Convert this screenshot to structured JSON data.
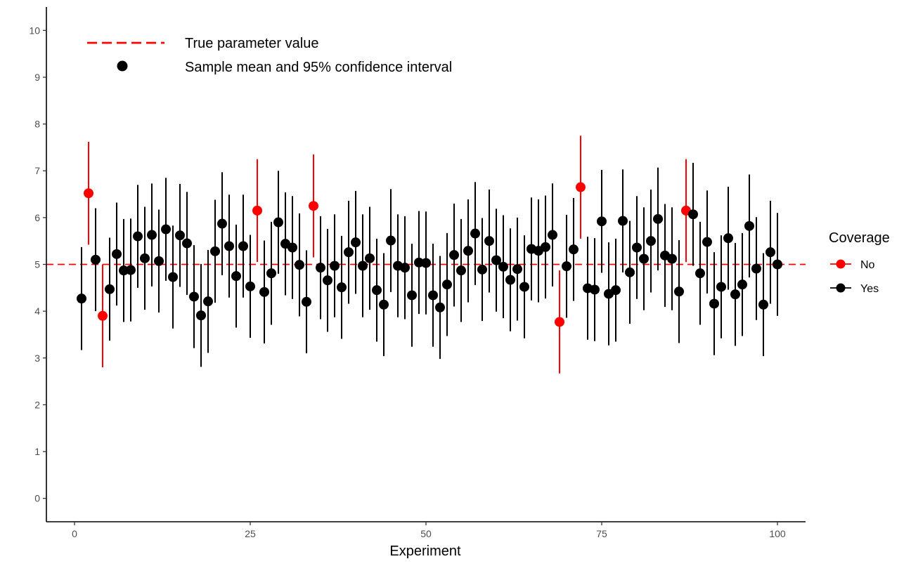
{
  "chart_data": {
    "type": "scatter",
    "xlabel": "Experiment",
    "ylabel": "",
    "xlim": [
      -4,
      104
    ],
    "ylim": [
      -0.5,
      10.5
    ],
    "x_ticks": [
      0,
      25,
      50,
      75,
      100
    ],
    "y_ticks": [
      0,
      1,
      2,
      3,
      4,
      5,
      6,
      7,
      8,
      9,
      10
    ],
    "grid": false,
    "true_value": 5,
    "ci_half_width": 1.1,
    "annotations": {
      "true_line_label": "True parameter value",
      "point_label": "Sample mean and 95% confidence interval"
    },
    "legend": {
      "title": "Coverage",
      "position": "right",
      "entries": [
        {
          "label": "No",
          "color": "#ff0000"
        },
        {
          "label": "Yes",
          "color": "#000000"
        }
      ]
    },
    "colors": {
      "no": "#ff0000",
      "yes": "#000000",
      "true_line": "#ff0000"
    },
    "points": [
      {
        "x": 1,
        "y": 4.27,
        "coverage": "Yes"
      },
      {
        "x": 2,
        "y": 6.52,
        "coverage": "No"
      },
      {
        "x": 3,
        "y": 5.1,
        "coverage": "Yes"
      },
      {
        "x": 4,
        "y": 3.9,
        "coverage": "No"
      },
      {
        "x": 5,
        "y": 4.47,
        "coverage": "Yes"
      },
      {
        "x": 6,
        "y": 5.22,
        "coverage": "Yes"
      },
      {
        "x": 7,
        "y": 4.87,
        "coverage": "Yes"
      },
      {
        "x": 8,
        "y": 4.88,
        "coverage": "Yes"
      },
      {
        "x": 9,
        "y": 5.6,
        "coverage": "Yes"
      },
      {
        "x": 10,
        "y": 5.13,
        "coverage": "Yes"
      },
      {
        "x": 11,
        "y": 5.63,
        "coverage": "Yes"
      },
      {
        "x": 12,
        "y": 5.07,
        "coverage": "Yes"
      },
      {
        "x": 13,
        "y": 5.75,
        "coverage": "Yes"
      },
      {
        "x": 14,
        "y": 4.73,
        "coverage": "Yes"
      },
      {
        "x": 15,
        "y": 5.62,
        "coverage": "Yes"
      },
      {
        "x": 16,
        "y": 5.45,
        "coverage": "Yes"
      },
      {
        "x": 17,
        "y": 4.31,
        "coverage": "Yes"
      },
      {
        "x": 18,
        "y": 3.91,
        "coverage": "Yes"
      },
      {
        "x": 19,
        "y": 4.21,
        "coverage": "Yes"
      },
      {
        "x": 20,
        "y": 5.28,
        "coverage": "Yes"
      },
      {
        "x": 21,
        "y": 5.87,
        "coverage": "Yes"
      },
      {
        "x": 22,
        "y": 5.39,
        "coverage": "Yes"
      },
      {
        "x": 23,
        "y": 4.75,
        "coverage": "Yes"
      },
      {
        "x": 24,
        "y": 5.39,
        "coverage": "Yes"
      },
      {
        "x": 25,
        "y": 4.53,
        "coverage": "Yes"
      },
      {
        "x": 26,
        "y": 6.15,
        "coverage": "No"
      },
      {
        "x": 27,
        "y": 4.41,
        "coverage": "Yes"
      },
      {
        "x": 28,
        "y": 4.81,
        "coverage": "Yes"
      },
      {
        "x": 29,
        "y": 5.9,
        "coverage": "Yes"
      },
      {
        "x": 30,
        "y": 5.44,
        "coverage": "Yes"
      },
      {
        "x": 31,
        "y": 5.36,
        "coverage": "Yes"
      },
      {
        "x": 32,
        "y": 4.99,
        "coverage": "Yes"
      },
      {
        "x": 33,
        "y": 4.2,
        "coverage": "Yes"
      },
      {
        "x": 34,
        "y": 6.25,
        "coverage": "No"
      },
      {
        "x": 35,
        "y": 4.93,
        "coverage": "Yes"
      },
      {
        "x": 36,
        "y": 4.66,
        "coverage": "Yes"
      },
      {
        "x": 37,
        "y": 4.97,
        "coverage": "Yes"
      },
      {
        "x": 38,
        "y": 4.51,
        "coverage": "Yes"
      },
      {
        "x": 39,
        "y": 5.26,
        "coverage": "Yes"
      },
      {
        "x": 40,
        "y": 5.47,
        "coverage": "Yes"
      },
      {
        "x": 41,
        "y": 4.97,
        "coverage": "Yes"
      },
      {
        "x": 42,
        "y": 5.13,
        "coverage": "Yes"
      },
      {
        "x": 43,
        "y": 4.45,
        "coverage": "Yes"
      },
      {
        "x": 44,
        "y": 4.14,
        "coverage": "Yes"
      },
      {
        "x": 45,
        "y": 5.51,
        "coverage": "Yes"
      },
      {
        "x": 46,
        "y": 4.97,
        "coverage": "Yes"
      },
      {
        "x": 47,
        "y": 4.93,
        "coverage": "Yes"
      },
      {
        "x": 48,
        "y": 4.34,
        "coverage": "Yes"
      },
      {
        "x": 49,
        "y": 5.04,
        "coverage": "Yes"
      },
      {
        "x": 50,
        "y": 5.03,
        "coverage": "Yes"
      },
      {
        "x": 51,
        "y": 4.34,
        "coverage": "Yes"
      },
      {
        "x": 52,
        "y": 4.08,
        "coverage": "Yes"
      },
      {
        "x": 53,
        "y": 4.57,
        "coverage": "Yes"
      },
      {
        "x": 54,
        "y": 5.2,
        "coverage": "Yes"
      },
      {
        "x": 55,
        "y": 4.87,
        "coverage": "Yes"
      },
      {
        "x": 56,
        "y": 5.29,
        "coverage": "Yes"
      },
      {
        "x": 57,
        "y": 5.66,
        "coverage": "Yes"
      },
      {
        "x": 58,
        "y": 4.89,
        "coverage": "Yes"
      },
      {
        "x": 59,
        "y": 5.5,
        "coverage": "Yes"
      },
      {
        "x": 60,
        "y": 5.09,
        "coverage": "Yes"
      },
      {
        "x": 61,
        "y": 4.95,
        "coverage": "Yes"
      },
      {
        "x": 62,
        "y": 4.67,
        "coverage": "Yes"
      },
      {
        "x": 63,
        "y": 4.9,
        "coverage": "Yes"
      },
      {
        "x": 64,
        "y": 4.52,
        "coverage": "Yes"
      },
      {
        "x": 65,
        "y": 5.33,
        "coverage": "Yes"
      },
      {
        "x": 66,
        "y": 5.29,
        "coverage": "Yes"
      },
      {
        "x": 67,
        "y": 5.37,
        "coverage": "Yes"
      },
      {
        "x": 68,
        "y": 5.63,
        "coverage": "Yes"
      },
      {
        "x": 69,
        "y": 3.77,
        "coverage": "No"
      },
      {
        "x": 70,
        "y": 4.96,
        "coverage": "Yes"
      },
      {
        "x": 71,
        "y": 5.32,
        "coverage": "Yes"
      },
      {
        "x": 72,
        "y": 6.65,
        "coverage": "No"
      },
      {
        "x": 73,
        "y": 4.49,
        "coverage": "Yes"
      },
      {
        "x": 74,
        "y": 4.46,
        "coverage": "Yes"
      },
      {
        "x": 75,
        "y": 5.92,
        "coverage": "Yes"
      },
      {
        "x": 76,
        "y": 4.37,
        "coverage": "Yes"
      },
      {
        "x": 77,
        "y": 4.45,
        "coverage": "Yes"
      },
      {
        "x": 78,
        "y": 5.93,
        "coverage": "Yes"
      },
      {
        "x": 79,
        "y": 4.83,
        "coverage": "Yes"
      },
      {
        "x": 80,
        "y": 5.36,
        "coverage": "Yes"
      },
      {
        "x": 81,
        "y": 5.12,
        "coverage": "Yes"
      },
      {
        "x": 82,
        "y": 5.5,
        "coverage": "Yes"
      },
      {
        "x": 83,
        "y": 5.97,
        "coverage": "Yes"
      },
      {
        "x": 84,
        "y": 5.19,
        "coverage": "Yes"
      },
      {
        "x": 85,
        "y": 5.12,
        "coverage": "Yes"
      },
      {
        "x": 86,
        "y": 4.42,
        "coverage": "Yes"
      },
      {
        "x": 87,
        "y": 6.15,
        "coverage": "No"
      },
      {
        "x": 88,
        "y": 6.07,
        "coverage": "Yes"
      },
      {
        "x": 89,
        "y": 4.81,
        "coverage": "Yes"
      },
      {
        "x": 90,
        "y": 5.48,
        "coverage": "Yes"
      },
      {
        "x": 91,
        "y": 4.16,
        "coverage": "Yes"
      },
      {
        "x": 92,
        "y": 4.52,
        "coverage": "Yes"
      },
      {
        "x": 93,
        "y": 5.56,
        "coverage": "Yes"
      },
      {
        "x": 94,
        "y": 4.36,
        "coverage": "Yes"
      },
      {
        "x": 95,
        "y": 4.57,
        "coverage": "Yes"
      },
      {
        "x": 96,
        "y": 5.82,
        "coverage": "Yes"
      },
      {
        "x": 97,
        "y": 4.91,
        "coverage": "Yes"
      },
      {
        "x": 98,
        "y": 4.14,
        "coverage": "Yes"
      },
      {
        "x": 99,
        "y": 5.26,
        "coverage": "Yes"
      },
      {
        "x": 100,
        "y": 5.0,
        "coverage": "Yes"
      }
    ]
  }
}
